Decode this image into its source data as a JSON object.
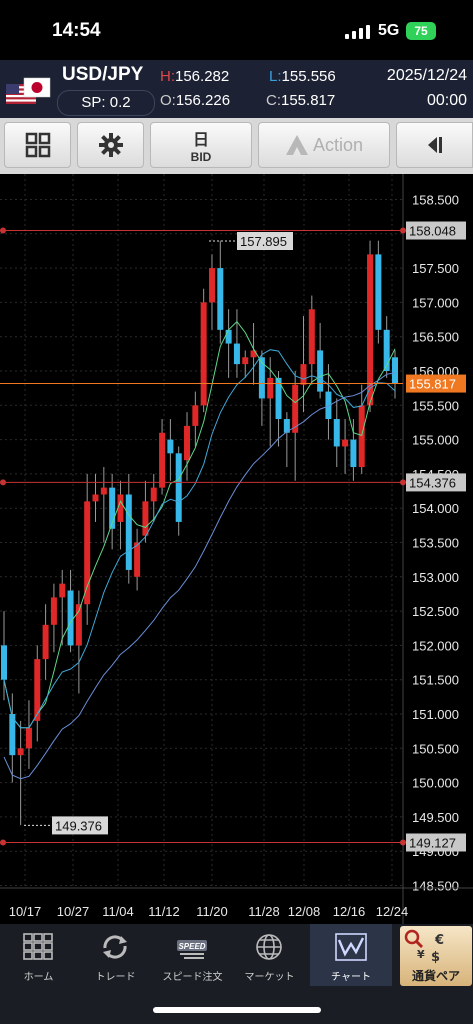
{
  "status": {
    "time": "14:54",
    "network": "5G",
    "battery": "75"
  },
  "quote": {
    "pair": "USD/JPY",
    "spread": "SP: 0.2",
    "high_label": "H:",
    "high": "156.282",
    "open_label": "O:",
    "open": "156.226",
    "low_label": "L:",
    "low": "155.556",
    "close_label": "C:",
    "close": "155.817",
    "date": "2025/12/24",
    "time": "00:00"
  },
  "toolbar": {
    "period": "日",
    "price_side": "BID",
    "action": "Action"
  },
  "chart_data": {
    "type": "candlestick",
    "y_ticks": [
      "158.500",
      "158.000",
      "157.500",
      "157.000",
      "156.500",
      "156.000",
      "155.500",
      "155.000",
      "154.500",
      "154.000",
      "153.500",
      "153.000",
      "152.500",
      "152.000",
      "151.500",
      "151.000",
      "150.500",
      "150.000",
      "149.500",
      "149.000",
      "148.500"
    ],
    "x_ticks": [
      "10/17",
      "10/27",
      "11/04",
      "11/12",
      "11/20",
      "11/28",
      "12/08",
      "12/16",
      "12/24"
    ],
    "ylim": [
      148.3,
      159.0
    ],
    "h_lines": [
      {
        "value": 158.048,
        "label": "158.048",
        "color": "#c83232"
      },
      {
        "value": 154.376,
        "label": "154.376",
        "color": "#c83232"
      },
      {
        "value": 149.127,
        "label": "149.127",
        "color": "#c83232"
      }
    ],
    "current_price": {
      "value": 155.817,
      "label": "155.817",
      "color": "#f07820"
    },
    "annotations": [
      {
        "label": "157.895",
        "value": 157.895
      },
      {
        "label": "149.376",
        "value": 149.376
      }
    ],
    "candles": [
      {
        "o": 152.0,
        "h": 152.5,
        "l": 151.2,
        "c": 151.5
      },
      {
        "o": 151.0,
        "h": 151.3,
        "l": 150.0,
        "c": 150.4
      },
      {
        "o": 150.4,
        "h": 150.9,
        "l": 149.38,
        "c": 150.5
      },
      {
        "o": 150.5,
        "h": 151.2,
        "l": 150.2,
        "c": 150.8
      },
      {
        "o": 150.9,
        "h": 152.0,
        "l": 150.6,
        "c": 151.8
      },
      {
        "o": 151.8,
        "h": 152.6,
        "l": 151.5,
        "c": 152.3
      },
      {
        "o": 152.3,
        "h": 152.9,
        "l": 151.9,
        "c": 152.7
      },
      {
        "o": 152.7,
        "h": 153.1,
        "l": 152.0,
        "c": 152.9
      },
      {
        "o": 152.8,
        "h": 153.1,
        "l": 151.9,
        "c": 152.0
      },
      {
        "o": 152.0,
        "h": 152.8,
        "l": 151.3,
        "c": 152.6
      },
      {
        "o": 152.6,
        "h": 154.5,
        "l": 152.3,
        "c": 154.1
      },
      {
        "o": 154.1,
        "h": 154.5,
        "l": 153.8,
        "c": 154.2
      },
      {
        "o": 154.2,
        "h": 154.6,
        "l": 153.5,
        "c": 154.3
      },
      {
        "o": 154.3,
        "h": 154.5,
        "l": 153.4,
        "c": 153.7
      },
      {
        "o": 153.8,
        "h": 154.4,
        "l": 153.4,
        "c": 154.2
      },
      {
        "o": 154.2,
        "h": 154.5,
        "l": 152.9,
        "c": 153.1
      },
      {
        "o": 153.0,
        "h": 153.7,
        "l": 152.8,
        "c": 153.5
      },
      {
        "o": 153.6,
        "h": 154.4,
        "l": 153.5,
        "c": 154.1
      },
      {
        "o": 154.1,
        "h": 154.5,
        "l": 153.8,
        "c": 154.3
      },
      {
        "o": 154.3,
        "h": 155.3,
        "l": 154.2,
        "c": 155.1
      },
      {
        "o": 155.0,
        "h": 155.3,
        "l": 154.4,
        "c": 154.8
      },
      {
        "o": 154.8,
        "h": 154.9,
        "l": 153.6,
        "c": 153.8
      },
      {
        "o": 154.7,
        "h": 155.4,
        "l": 154.4,
        "c": 155.2
      },
      {
        "o": 155.2,
        "h": 155.7,
        "l": 154.9,
        "c": 155.5
      },
      {
        "o": 155.5,
        "h": 157.2,
        "l": 155.4,
        "c": 157.0
      },
      {
        "o": 157.0,
        "h": 157.7,
        "l": 156.6,
        "c": 157.5
      },
      {
        "o": 157.5,
        "h": 157.9,
        "l": 156.4,
        "c": 156.6
      },
      {
        "o": 156.6,
        "h": 156.9,
        "l": 155.9,
        "c": 156.4
      },
      {
        "o": 156.4,
        "h": 156.9,
        "l": 155.9,
        "c": 156.1
      },
      {
        "o": 156.1,
        "h": 156.3,
        "l": 155.9,
        "c": 156.2
      },
      {
        "o": 156.2,
        "h": 156.7,
        "l": 155.8,
        "c": 156.3
      },
      {
        "o": 156.2,
        "h": 156.3,
        "l": 155.2,
        "c": 155.6
      },
      {
        "o": 155.6,
        "h": 156.2,
        "l": 154.9,
        "c": 155.9
      },
      {
        "o": 155.9,
        "h": 156.0,
        "l": 154.9,
        "c": 155.3
      },
      {
        "o": 155.3,
        "h": 155.4,
        "l": 154.6,
        "c": 155.1
      },
      {
        "o": 155.1,
        "h": 156.0,
        "l": 154.4,
        "c": 155.8
      },
      {
        "o": 155.8,
        "h": 156.8,
        "l": 155.4,
        "c": 156.1
      },
      {
        "o": 156.1,
        "h": 157.1,
        "l": 155.8,
        "c": 156.9
      },
      {
        "o": 156.3,
        "h": 156.7,
        "l": 155.6,
        "c": 155.7
      },
      {
        "o": 155.7,
        "h": 156.1,
        "l": 155.0,
        "c": 155.3
      },
      {
        "o": 155.3,
        "h": 155.6,
        "l": 154.6,
        "c": 154.9
      },
      {
        "o": 154.9,
        "h": 155.3,
        "l": 154.5,
        "c": 155.0
      },
      {
        "o": 155.0,
        "h": 155.3,
        "l": 154.4,
        "c": 154.6
      },
      {
        "o": 154.6,
        "h": 155.8,
        "l": 154.5,
        "c": 155.5
      },
      {
        "o": 155.5,
        "h": 157.9,
        "l": 155.4,
        "c": 157.7
      },
      {
        "o": 157.7,
        "h": 157.9,
        "l": 156.4,
        "c": 156.6
      },
      {
        "o": 156.6,
        "h": 156.8,
        "l": 155.9,
        "c": 156.0
      },
      {
        "o": 156.2,
        "h": 156.3,
        "l": 155.6,
        "c": 155.82
      }
    ],
    "up_color": "#e02828",
    "down_color": "#38b8e8",
    "ma_colors": [
      "#5dd888",
      "#40a8d8",
      "#6a8ed8"
    ],
    "ma_periods": [
      5,
      10,
      25
    ]
  },
  "tabs": [
    {
      "label": "ホーム",
      "icon": "home-grid-icon"
    },
    {
      "label": "トレード",
      "icon": "trade-arrows-icon"
    },
    {
      "label": "スピード注文",
      "icon": "speed-icon",
      "badge": "SPEED"
    },
    {
      "label": "マーケット",
      "icon": "globe-icon"
    },
    {
      "label": "チャート",
      "icon": "chart-icon"
    },
    {
      "label": "通貨ペア",
      "icon": "currency-pair-icon"
    }
  ]
}
